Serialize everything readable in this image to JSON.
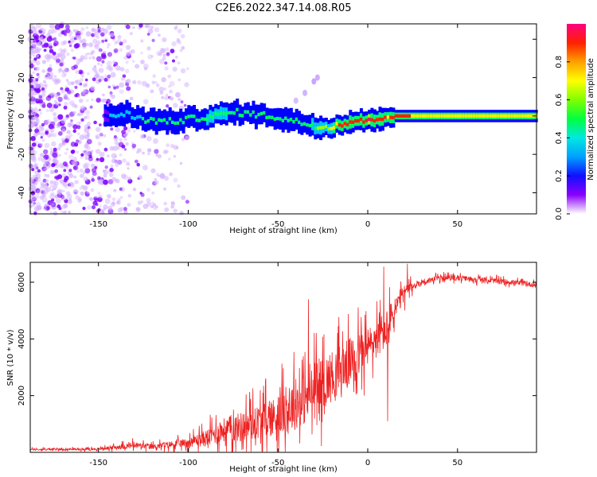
{
  "page": {
    "title": "C2E6.2022.347.14.08.R05"
  },
  "colors": {
    "snr_line": "#ee2222",
    "spectrogram_background": "#ffffff",
    "colormap": [
      "#ffffff",
      "#7a00ff",
      "#0000ff",
      "#00c8ff",
      "#00ff66",
      "#99ff00",
      "#ffee00",
      "#ff2200",
      "#ff0077"
    ]
  },
  "chart_data": [
    {
      "id": "spectrogram",
      "type": "heatmap",
      "xlabel": "Height of straight line (km)",
      "ylabel": "Frequency (Hz)",
      "xlim": [
        -188,
        94
      ],
      "ylim": [
        -51,
        48
      ],
      "xticks": [
        -150,
        -100,
        -50,
        0,
        50
      ],
      "yticks": [
        -40,
        -20,
        0,
        20,
        40
      ],
      "colorbar": {
        "label": "Normalized spectral amplitude",
        "range": [
          0,
          1
        ],
        "ticks": [
          0.0,
          0.2,
          0.4,
          0.6,
          0.8
        ]
      },
      "ridge": {
        "description": "Main spectral line center frequency vs height",
        "x": [
          -147,
          -135,
          -125,
          -110,
          -95,
          -85,
          -75,
          -65,
          -55,
          -45,
          -35,
          -25,
          -15,
          -5,
          0,
          5,
          10,
          15,
          25,
          40,
          60,
          94
        ],
        "freq": [
          0,
          1,
          -2,
          -3,
          -1,
          0,
          2,
          1,
          0,
          -2,
          -4,
          -6,
          -4,
          -2,
          -3,
          -1,
          0,
          0,
          0,
          0,
          0,
          0
        ],
        "amplitude": [
          0.3,
          0.35,
          0.45,
          0.5,
          0.5,
          0.55,
          0.5,
          0.5,
          0.5,
          0.45,
          0.5,
          0.6,
          0.85,
          0.9,
          0.95,
          0.9,
          0.8,
          0.9,
          0.8,
          0.75,
          0.75,
          0.75
        ]
      },
      "noise_region": {
        "x_from": -188,
        "x_to": -100,
        "amplitude": 0.1
      }
    },
    {
      "id": "snr",
      "type": "line",
      "xlabel": "Height of straight line (km)",
      "ylabel": "SNR (10 * v/v)",
      "xlim": [
        -188,
        94
      ],
      "ylim": [
        0,
        6700
      ],
      "xticks": [
        -150,
        -100,
        -50,
        0,
        50
      ],
      "yticks": [
        2000,
        4000,
        6000
      ],
      "envelope": {
        "x": [
          -188,
          -150,
          -130,
          -120,
          -100,
          -90,
          -80,
          -70,
          -60,
          -50,
          -40,
          -30,
          -20,
          -10,
          0,
          10,
          15,
          20,
          25,
          30,
          40,
          50,
          60,
          70,
          80,
          94
        ],
        "base": [
          100,
          120,
          250,
          200,
          350,
          500,
          800,
          900,
          1100,
          1300,
          1700,
          2100,
          2700,
          3200,
          3700,
          4300,
          5000,
          5600,
          5850,
          6000,
          6150,
          6150,
          6100,
          6050,
          6000,
          5900
        ],
        "spread": [
          60,
          60,
          200,
          150,
          250,
          500,
          700,
          900,
          1000,
          1200,
          1500,
          1600,
          1500,
          1400,
          1200,
          1100,
          900,
          500,
          250,
          200,
          150,
          150,
          150,
          150,
          150,
          150
        ]
      },
      "notable_points": [
        {
          "x": -33,
          "y": 5400
        },
        {
          "x": 9,
          "y": 6550
        },
        {
          "x": 11,
          "y": 1100
        },
        {
          "x": 22,
          "y": 6650
        }
      ]
    }
  ]
}
